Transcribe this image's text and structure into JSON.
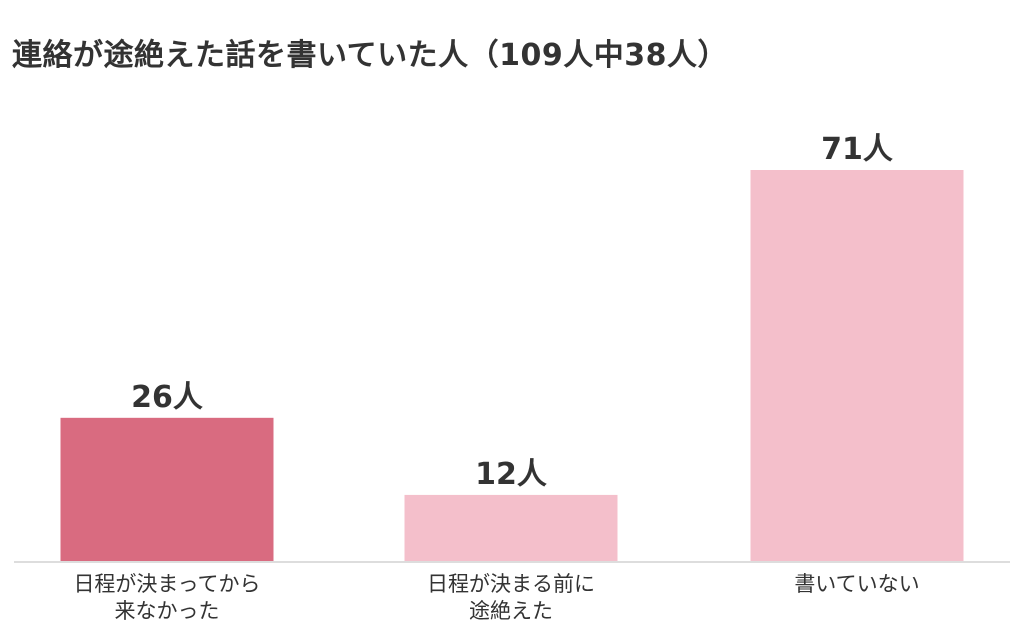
{
  "chart_data": {
    "type": "bar",
    "title": "連絡が途絶えた話を書いていた人（109人中38人）",
    "xlabel": "",
    "ylabel": "",
    "categories": [
      [
        "日程が決まってから",
        "来なかった"
      ],
      [
        "日程が決まる前に",
        "途絶えた"
      ],
      [
        "書いていない"
      ]
    ],
    "values": [
      26,
      12,
      71
    ],
    "value_labels": [
      "26人",
      "12人",
      "71人"
    ],
    "bar_colors": [
      "#d96b80",
      "#f4bfcb",
      "#f4bfcb"
    ],
    "ylim": [
      0,
      80
    ],
    "grid": false,
    "legend": "none"
  },
  "colors": {
    "title_text": "#333333",
    "baseline": "#dddddd"
  }
}
